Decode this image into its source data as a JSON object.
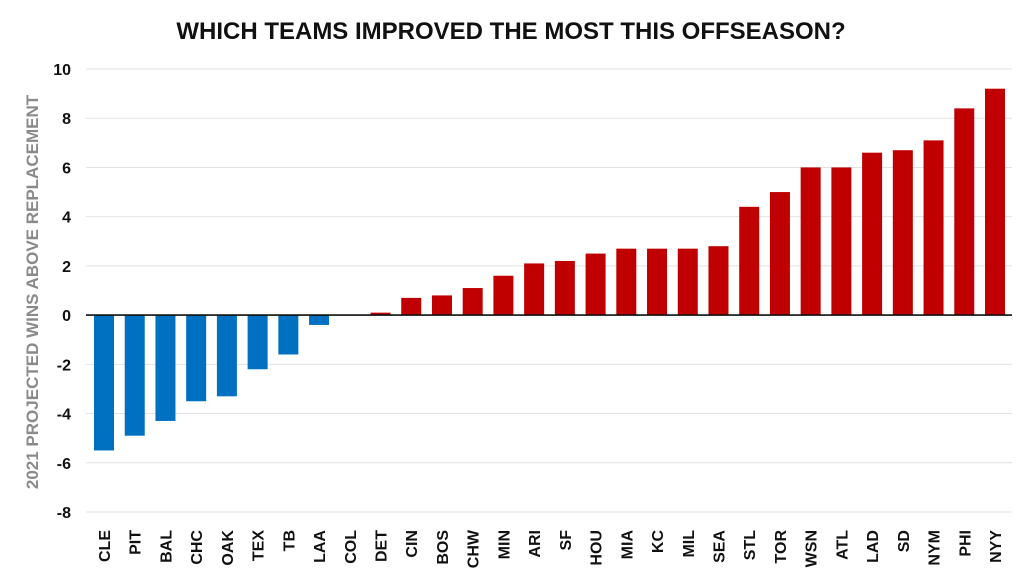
{
  "chart_data": {
    "type": "bar",
    "title": "WHICH TEAMS IMPROVED THE MOST THIS OFFSEASON?",
    "xlabel": "",
    "ylabel": "2021 PROJECTED WINS ABOVE REPLACEMENT",
    "ylim": [
      -8,
      10
    ],
    "yticks": [
      -8,
      -6,
      -4,
      -2,
      0,
      2,
      4,
      6,
      8,
      10
    ],
    "grid": true,
    "categories": [
      "CLE",
      "PIT",
      "BAL",
      "CHC",
      "OAK",
      "TEX",
      "TB",
      "LAA",
      "COL",
      "DET",
      "CIN",
      "BOS",
      "CHW",
      "MIN",
      "ARI",
      "SF",
      "HOU",
      "MIA",
      "KC",
      "MIL",
      "SEA",
      "STL",
      "TOR",
      "WSN",
      "ATL",
      "LAD",
      "SD",
      "NYM",
      "PHI",
      "NYY"
    ],
    "values": [
      -5.5,
      -4.9,
      -4.3,
      -3.5,
      -3.3,
      -2.2,
      -1.6,
      -0.4,
      0.0,
      0.1,
      0.7,
      0.8,
      1.1,
      1.6,
      2.1,
      2.2,
      2.5,
      2.7,
      2.7,
      2.7,
      2.8,
      4.4,
      5.0,
      6.0,
      6.0,
      6.6,
      6.7,
      7.1,
      8.4,
      9.2
    ],
    "colors": {
      "positive": "#c00000",
      "negative": "#0070c0"
    }
  }
}
